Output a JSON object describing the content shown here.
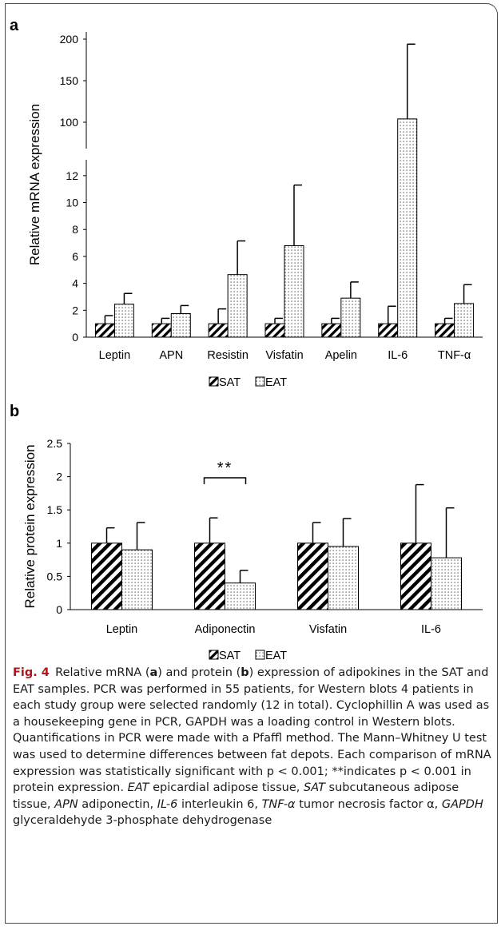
{
  "chart_data": [
    {
      "panel": "a",
      "type": "bar",
      "ylabel": "Relative mRNA expression",
      "categories": [
        "Leptin",
        "APN",
        "Resistin",
        "Visfatin",
        "Apelin",
        "IL-6",
        "TNF-α"
      ],
      "series": [
        {
          "name": "SAT",
          "values": [
            1,
            1,
            1,
            1,
            1,
            1,
            1
          ],
          "errors": [
            0.6,
            0.4,
            1.1,
            0.4,
            0.4,
            1.3,
            0.4
          ]
        },
        {
          "name": "EAT",
          "values": [
            2.45,
            1.75,
            4.65,
            6.8,
            2.9,
            104,
            2.5
          ],
          "errors": [
            0.8,
            0.6,
            2.5,
            4.5,
            1.2,
            90,
            1.4
          ]
        }
      ],
      "broken_axis": true,
      "lower_range": [
        0,
        13
      ],
      "lower_ticks": [
        "0",
        "2",
        "4",
        "6",
        "8",
        "10",
        "12"
      ],
      "upper_range": [
        100,
        200
      ],
      "upper_ticks": [
        "100",
        "150",
        "200"
      ],
      "legend": [
        "SAT",
        "EAT"
      ],
      "legend_position": "bottom",
      "grid": false
    },
    {
      "panel": "b",
      "type": "bar",
      "ylabel": "Relative protein expression",
      "categories": [
        "Leptin",
        "Adiponectin",
        "Visfatin",
        "IL-6"
      ],
      "series": [
        {
          "name": "SAT",
          "values": [
            1,
            1,
            1,
            1
          ],
          "errors": [
            0.23,
            0.38,
            0.31,
            0.88
          ]
        },
        {
          "name": "EAT",
          "values": [
            0.9,
            0.4,
            0.95,
            0.78
          ],
          "errors": [
            0.41,
            0.19,
            0.42,
            0.75
          ]
        }
      ],
      "ylim": [
        0,
        2.5
      ],
      "yticks": [
        "0",
        "0.5",
        "1",
        "1.5",
        "2",
        "2.5"
      ],
      "annotations": [
        {
          "category": "Adiponectin",
          "text": "**"
        }
      ],
      "legend": [
        "SAT",
        "EAT"
      ],
      "legend_position": "bottom",
      "grid": false
    }
  ],
  "caption": {
    "label": "Fig. 4",
    "text": "Relative mRNA (a) and protein (b) expression of adipokines in the SAT and EAT samples. PCR was performed in 55 patients, for Western blots 4 patients in each study group were selected randomly (12 in total). Cyclophillin A was used as a housekeeping gene in PCR, GAPDH was a loading control in Western blots. Quantifications in PCR were made with a Pfaffl method. The Mann–Whitney U test was used to determine differences between fat depots. Each comparison of mRNA expression was statistically significant with p < 0.001; **indicates p < 0.001 in protein expression. EAT epicardial adipose tissue, SAT subcutaneous adipose tissue, APN adiponectin, IL-6 interleukin 6, TNF-α tumor necrosis factor α, GAPDH glyceraldehyde 3-phosphate dehydrogenase"
  }
}
